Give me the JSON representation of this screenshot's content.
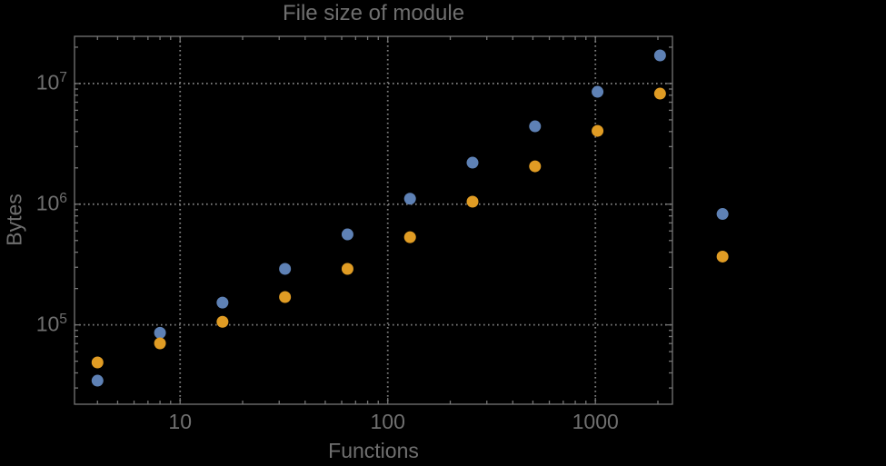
{
  "colors": {
    "background": "#000000",
    "text": "#6F6F6F",
    "frame": "#757575",
    "gridline": "#7E7E7E",
    "series_blue": "#5E81B5",
    "series_orange": "#E09C24"
  },
  "chart_data": {
    "type": "scatter",
    "title": "File size of module",
    "xlabel": "Functions",
    "ylabel": "Bytes",
    "x_scale": "log",
    "y_scale": "log",
    "grid": true,
    "legend": "none",
    "xlim": [
      3.1,
      2350
    ],
    "ylim": [
      22000,
      24600000
    ],
    "x_ticks": [
      {
        "value": 10,
        "label": "10"
      },
      {
        "value": 100,
        "label": "100"
      },
      {
        "value": 1000,
        "label": "1000"
      }
    ],
    "y_ticks": [
      {
        "value": 100000,
        "base": "10",
        "exp": "5"
      },
      {
        "value": 1000000,
        "base": "10",
        "exp": "6"
      },
      {
        "value": 10000000,
        "base": "10",
        "exp": "7"
      }
    ],
    "x": [
      4,
      8,
      16,
      32,
      64,
      128,
      256,
      512,
      1024,
      2048,
      4096
    ],
    "series": [
      {
        "name": "series-blue",
        "color": "#5E81B5",
        "values": [
          34500,
          86000,
          153000,
          291000,
          562000,
          1110000,
          2210000,
          4420000,
          8540000,
          17100000,
          830000
        ]
      },
      {
        "name": "series-orange",
        "color": "#E09C24",
        "values": [
          48800,
          70300,
          106000,
          170000,
          291000,
          533000,
          1050000,
          2060000,
          4050000,
          8250000,
          368000
        ]
      }
    ],
    "note_points_outside_frame_x": 4096
  }
}
